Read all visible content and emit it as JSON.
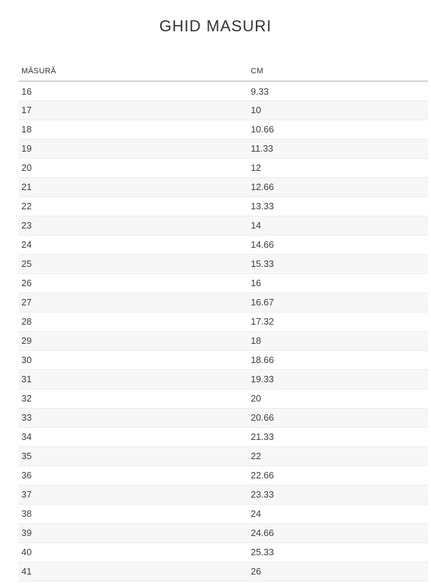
{
  "page": {
    "title": "GHID MASURI"
  },
  "table": {
    "columns": [
      {
        "key": "size",
        "label": "MĂSURĂ"
      },
      {
        "key": "cm",
        "label": "CM"
      }
    ],
    "rows": [
      {
        "size": "16",
        "cm": "9.33"
      },
      {
        "size": "17",
        "cm": "10"
      },
      {
        "size": "18",
        "cm": "10.66"
      },
      {
        "size": "19",
        "cm": "11.33"
      },
      {
        "size": "20",
        "cm": "12"
      },
      {
        "size": "21",
        "cm": "12.66"
      },
      {
        "size": "22",
        "cm": "13.33"
      },
      {
        "size": "23",
        "cm": "14"
      },
      {
        "size": "24",
        "cm": "14.66"
      },
      {
        "size": "25",
        "cm": "15.33"
      },
      {
        "size": "26",
        "cm": "16"
      },
      {
        "size": "27",
        "cm": "16.67"
      },
      {
        "size": "28",
        "cm": "17.32"
      },
      {
        "size": "29",
        "cm": "18"
      },
      {
        "size": "30",
        "cm": "18.66"
      },
      {
        "size": "31",
        "cm": "19.33"
      },
      {
        "size": "32",
        "cm": "20"
      },
      {
        "size": "33",
        "cm": "20.66"
      },
      {
        "size": "34",
        "cm": "21.33"
      },
      {
        "size": "35",
        "cm": "22"
      },
      {
        "size": "36",
        "cm": "22.66"
      },
      {
        "size": "37",
        "cm": "23.33"
      },
      {
        "size": "38",
        "cm": "24"
      },
      {
        "size": "39",
        "cm": "24.66"
      },
      {
        "size": "40",
        "cm": "25.33"
      },
      {
        "size": "41",
        "cm": "26"
      }
    ]
  },
  "colors": {
    "stripe": "#f7f7f7",
    "row_border": "#ececec",
    "header_border": "#d4d4d4",
    "text": "#3d3d3d",
    "title_text": "#333333"
  }
}
